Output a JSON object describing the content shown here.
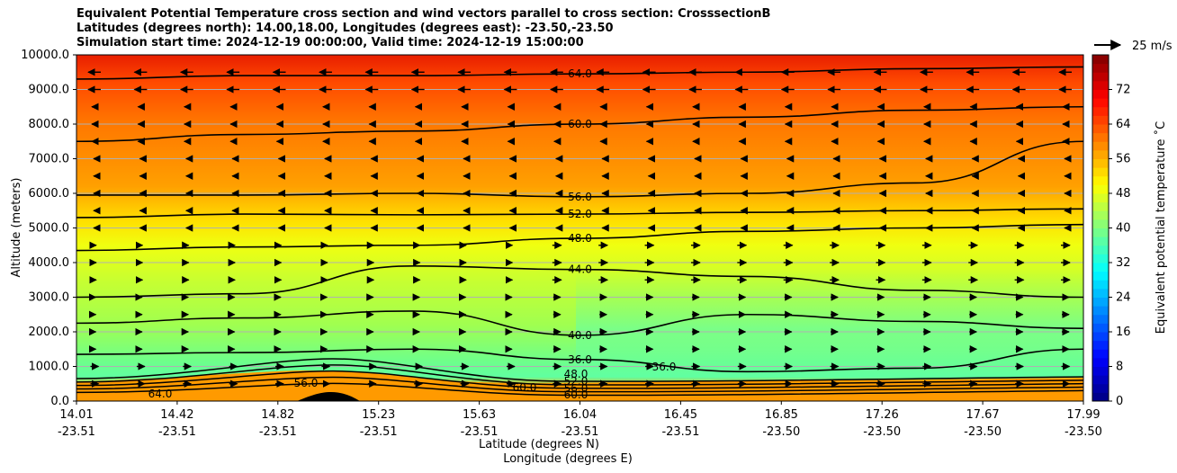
{
  "chart_data": {
    "type": "heatmap",
    "title_lines": [
      "Equivalent Potential Temperature cross section and wind vectors parallel to cross section: CrosssectionB",
      "Latitudes (degrees north): 14.00,18.00, Longitudes (degrees east): -23.50,-23.50",
      "Simulation start time: 2024-12-19 00:00:00, Valid time: 2024-12-19 15:00:00"
    ],
    "ylabel": "Altitude (meters)",
    "xlabel_lat": "Latitude (degrees N)",
    "xlabel_lon": "Longitude (degrees E)",
    "ylim": [
      0,
      10000
    ],
    "y_ticks": [
      "0.0",
      "1000.0",
      "2000.0",
      "3000.0",
      "4000.0",
      "5000.0",
      "6000.0",
      "7000.0",
      "8000.0",
      "9000.0",
      "10000.0"
    ],
    "x_ticks": [
      {
        "lat": "14.01",
        "lon": "-23.51"
      },
      {
        "lat": "14.42",
        "lon": "-23.51"
      },
      {
        "lat": "14.82",
        "lon": "-23.51"
      },
      {
        "lat": "15.23",
        "lon": "-23.51"
      },
      {
        "lat": "15.63",
        "lon": "-23.51"
      },
      {
        "lat": "16.04",
        "lon": "-23.51"
      },
      {
        "lat": "16.45",
        "lon": "-23.51"
      },
      {
        "lat": "16.85",
        "lon": "-23.50"
      },
      {
        "lat": "17.26",
        "lon": "-23.50"
      },
      {
        "lat": "17.67",
        "lon": "-23.50"
      },
      {
        "lat": "17.99",
        "lon": "-23.50"
      }
    ],
    "colorbar": {
      "label": "Equivalent potential temperature ˚C",
      "range": [
        0,
        80
      ],
      "ticks": [
        "0",
        "8",
        "16",
        "24",
        "32",
        "40",
        "48",
        "56",
        "64",
        "72"
      ],
      "colormap": "jet"
    },
    "wind_key": "25 m/s",
    "grid": "horizontal",
    "contours": [
      {
        "value": 64,
        "label": "64.0",
        "altitude": [
          9300,
          9400,
          9400,
          9450,
          9500,
          9600,
          9650
        ]
      },
      {
        "value": 60,
        "label": "60.0",
        "altitude": [
          7500,
          7700,
          7800,
          8000,
          8200,
          8400,
          8500
        ]
      },
      {
        "value": 56,
        "label": "56.0",
        "altitude": [
          5950,
          5950,
          6000,
          5900,
          6000,
          6300,
          7500
        ]
      },
      {
        "value": 52,
        "label": "52.0",
        "altitude": [
          5300,
          5400,
          5380,
          5400,
          5450,
          5500,
          5550
        ]
      },
      {
        "value": 48,
        "label": "48.0",
        "altitude": [
          4350,
          4450,
          4500,
          4700,
          4900,
          5000,
          5100
        ]
      },
      {
        "value": 44,
        "label": "44.0",
        "altitude": [
          3000,
          3100,
          3900,
          3800,
          3600,
          3200,
          3000
        ]
      },
      {
        "value": 40,
        "label": "40.0",
        "altitude": [
          2250,
          2400,
          2600,
          1900,
          2500,
          2300,
          2100
        ]
      },
      {
        "value": 36,
        "label": "36.0",
        "altitude": [
          1350,
          1400,
          1500,
          1200,
          850,
          950,
          1500
        ]
      }
    ],
    "surface_contour_labels": [
      "48.0",
      "52.0",
      "56.0",
      "60.0",
      "60.0",
      "64.0",
      "56.0",
      "36.0"
    ],
    "colors": {
      "top": "#f02800",
      "upper": "#ff8a00",
      "mid": "#ffe000",
      "low": "#c8ff30",
      "lower": "#80ff80",
      "surface": "#ff6000"
    }
  }
}
